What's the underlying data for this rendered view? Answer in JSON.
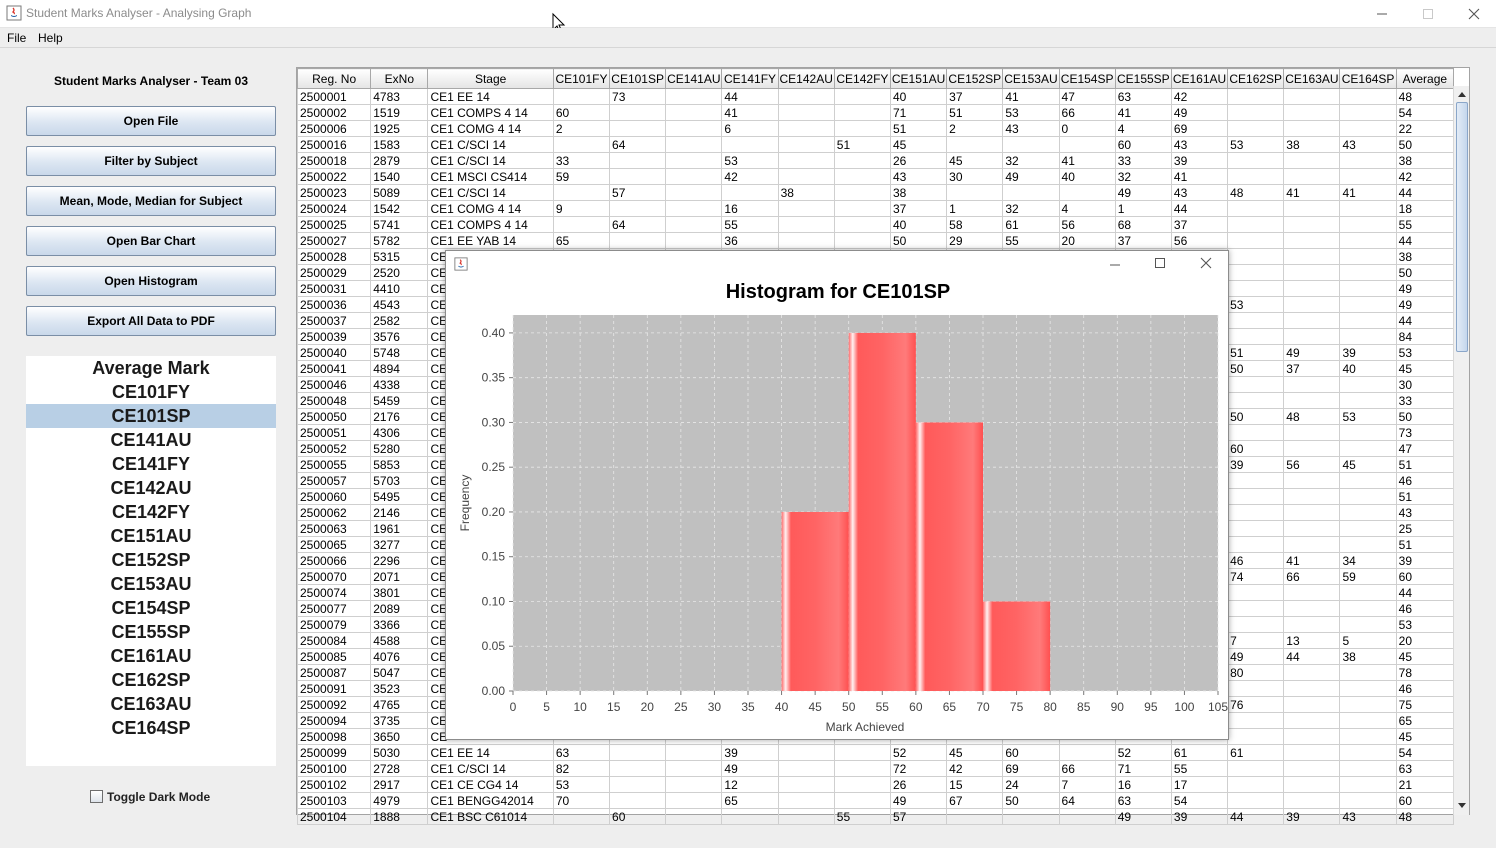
{
  "window": {
    "title": "Student Marks Analyser - Analysing Graph"
  },
  "menu": {
    "items": [
      "File",
      "Help"
    ]
  },
  "sidebar": {
    "team_title": "Student Marks Analyser - Team 03",
    "buttons": [
      "Open File",
      "Filter by Subject",
      "Mean, Mode, Median for Subject",
      "Open Bar Chart",
      "Open Histogram",
      "Export All Data to PDF"
    ],
    "list_items": [
      "Average Mark",
      "CE101FY",
      "CE101SP",
      "CE141AU",
      "CE141FY",
      "CE142AU",
      "CE142FY",
      "CE151AU",
      "CE152SP",
      "CE153AU",
      "CE154SP",
      "CE155SP",
      "CE161AU",
      "CE162SP",
      "CE163AU",
      "CE164SP"
    ],
    "selected_index": 2,
    "dark_mode_label": "Toggle Dark Mode",
    "dark_mode_checked": false
  },
  "table": {
    "columns": [
      "Reg. No",
      "ExNo",
      "Stage",
      "CE101FY",
      "CE101SP",
      "CE141AU",
      "CE141FY",
      "CE142AU",
      "CE142FY",
      "CE151AU",
      "CE152SP",
      "CE153AU",
      "CE154SP",
      "CE155SP",
      "CE161AU",
      "CE162SP",
      "CE163AU",
      "CE164SP",
      "Average"
    ],
    "rows": [
      [
        "2500001",
        "4783",
        "CE1 EE      14",
        "",
        "73",
        "",
        "44",
        "",
        "",
        "40",
        "37",
        "41",
        "47",
        "63",
        "42",
        "",
        "",
        "",
        "48"
      ],
      [
        "2500002",
        "1519",
        "CE1 COMPS 4 14",
        "60",
        "",
        "",
        "41",
        "",
        "",
        "71",
        "51",
        "53",
        "66",
        "41",
        "49",
        "",
        "",
        "",
        "54"
      ],
      [
        "2500006",
        "1925",
        "CE1  COMG 4 14",
        "2",
        "",
        "",
        "6",
        "",
        "",
        "51",
        "2",
        "43",
        "0",
        "4",
        "69",
        "",
        "",
        "",
        "22"
      ],
      [
        "2500016",
        "1583",
        "CE1 C/SCI   14",
        "",
        "64",
        "",
        "",
        "",
        "51",
        "45",
        "",
        "",
        "",
        "60",
        "43",
        "53",
        "38",
        "43",
        "50"
      ],
      [
        "2500018",
        "2879",
        "CE1 C/SCI   14",
        "33",
        "",
        "",
        "53",
        "",
        "",
        "26",
        "45",
        "32",
        "41",
        "33",
        "39",
        "",
        "",
        "",
        "38"
      ],
      [
        "2500022",
        "1540",
        "CE1 MSCI CS414",
        "59",
        "",
        "",
        "42",
        "",
        "",
        "43",
        "30",
        "49",
        "40",
        "32",
        "41",
        "",
        "",
        "",
        "42"
      ],
      [
        "2500023",
        "5089",
        "CE1 C/SCI   14",
        "",
        "57",
        "",
        "",
        "38",
        "",
        "38",
        "",
        "",
        "",
        "49",
        "43",
        "48",
        "41",
        "41",
        "44"
      ],
      [
        "2500024",
        "1542",
        "CE1  COMG 4 14",
        "9",
        "",
        "",
        "16",
        "",
        "",
        "37",
        "1",
        "32",
        "4",
        "1",
        "44",
        "",
        "",
        "",
        "18"
      ],
      [
        "2500025",
        "5741",
        "CE1 COMPS 4 14",
        "",
        "64",
        "",
        "55",
        "",
        "",
        "40",
        "58",
        "61",
        "56",
        "68",
        "37",
        "",
        "",
        "",
        "55"
      ],
      [
        "2500027",
        "5782",
        "CE1 EE YAB  14",
        "65",
        "",
        "",
        "36",
        "",
        "",
        "50",
        "29",
        "55",
        "20",
        "37",
        "56",
        "",
        "",
        "",
        "44"
      ],
      [
        "2500028",
        "5315",
        "CE",
        "",
        "",
        "",
        "",
        "",
        "",
        "",
        "",
        "",
        "",
        "",
        "",
        "",
        "",
        "",
        "38"
      ],
      [
        "2500029",
        "2520",
        "CE",
        "",
        "",
        "",
        "",
        "",
        "",
        "",
        "",
        "",
        "",
        "",
        "",
        "",
        "",
        "",
        "50"
      ],
      [
        "2500031",
        "4410",
        "CE",
        "",
        "",
        "",
        "",
        "",
        "",
        "",
        "",
        "",
        "",
        "",
        "",
        "",
        "",
        "",
        "49"
      ],
      [
        "2500036",
        "4543",
        "CE",
        "",
        "",
        "",
        "",
        "",
        "",
        "",
        "",
        "",
        "",
        "",
        "",
        "53",
        "",
        "",
        "49"
      ],
      [
        "2500037",
        "2582",
        "CE",
        "",
        "",
        "",
        "",
        "",
        "",
        "",
        "",
        "",
        "",
        "",
        "",
        "",
        "",
        "",
        "44"
      ],
      [
        "2500039",
        "3576",
        "CE",
        "",
        "",
        "",
        "",
        "",
        "",
        "",
        "",
        "",
        "",
        "",
        "",
        "",
        "",
        "",
        "84"
      ],
      [
        "2500040",
        "5748",
        "CE",
        "",
        "",
        "",
        "",
        "",
        "",
        "",
        "",
        "",
        "",
        "",
        "",
        "51",
        "49",
        "39",
        "53"
      ],
      [
        "2500041",
        "4894",
        "CE",
        "",
        "",
        "",
        "",
        "",
        "",
        "",
        "",
        "",
        "",
        "",
        "",
        "50",
        "37",
        "40",
        "45"
      ],
      [
        "2500046",
        "4338",
        "CE",
        "",
        "",
        "",
        "",
        "",
        "",
        "",
        "",
        "",
        "",
        "",
        "",
        "",
        "",
        "",
        "30"
      ],
      [
        "2500048",
        "5459",
        "CE",
        "",
        "",
        "",
        "",
        "",
        "",
        "",
        "",
        "",
        "",
        "",
        "",
        "",
        "",
        "",
        "33"
      ],
      [
        "2500050",
        "2176",
        "CE",
        "",
        "",
        "",
        "",
        "",
        "",
        "",
        "",
        "",
        "",
        "",
        "",
        "50",
        "48",
        "53",
        "50"
      ],
      [
        "2500051",
        "4306",
        "CE",
        "",
        "",
        "",
        "",
        "",
        "",
        "",
        "",
        "",
        "",
        "",
        "",
        "",
        "",
        "",
        "73"
      ],
      [
        "2500052",
        "5280",
        "CE",
        "",
        "",
        "",
        "",
        "",
        "",
        "",
        "",
        "",
        "",
        "",
        "",
        "60",
        "",
        "",
        "47"
      ],
      [
        "2500055",
        "5853",
        "CE",
        "",
        "",
        "",
        "",
        "",
        "",
        "",
        "",
        "",
        "",
        "",
        "",
        "39",
        "56",
        "45",
        "51"
      ],
      [
        "2500057",
        "5703",
        "CE",
        "",
        "",
        "",
        "",
        "",
        "",
        "",
        "",
        "",
        "",
        "",
        "",
        "",
        "",
        "",
        "46"
      ],
      [
        "2500060",
        "5495",
        "CE",
        "",
        "",
        "",
        "",
        "",
        "",
        "",
        "",
        "",
        "",
        "",
        "",
        "",
        "",
        "",
        "51"
      ],
      [
        "2500062",
        "2146",
        "CE",
        "",
        "",
        "",
        "",
        "",
        "",
        "",
        "",
        "",
        "",
        "",
        "",
        "",
        "",
        "",
        "43"
      ],
      [
        "2500063",
        "1961",
        "CE",
        "",
        "",
        "",
        "",
        "",
        "",
        "",
        "",
        "",
        "",
        "",
        "",
        "",
        "",
        "",
        "25"
      ],
      [
        "2500065",
        "3277",
        "CE",
        "",
        "",
        "",
        "",
        "",
        "",
        "",
        "",
        "",
        "",
        "",
        "",
        "",
        "",
        "",
        "51"
      ],
      [
        "2500066",
        "2296",
        "CE",
        "",
        "",
        "",
        "",
        "",
        "",
        "",
        "",
        "",
        "",
        "",
        "",
        "46",
        "41",
        "34",
        "39"
      ],
      [
        "2500070",
        "2071",
        "CE",
        "",
        "",
        "",
        "",
        "",
        "",
        "",
        "",
        "",
        "",
        "",
        "",
        "74",
        "66",
        "59",
        "60"
      ],
      [
        "2500074",
        "3801",
        "CE",
        "",
        "",
        "",
        "",
        "",
        "",
        "",
        "",
        "",
        "",
        "",
        "",
        "",
        "",
        "",
        "44"
      ],
      [
        "2500077",
        "2089",
        "CE",
        "",
        "",
        "",
        "",
        "",
        "",
        "",
        "",
        "",
        "",
        "",
        "",
        "",
        "",
        "",
        "46"
      ],
      [
        "2500079",
        "3366",
        "CE",
        "",
        "",
        "",
        "",
        "",
        "",
        "",
        "",
        "",
        "",
        "",
        "",
        "",
        "",
        "",
        "53"
      ],
      [
        "2500084",
        "4588",
        "CE",
        "",
        "",
        "",
        "",
        "",
        "",
        "",
        "",
        "",
        "",
        "",
        "",
        "7",
        "13",
        "5",
        "20"
      ],
      [
        "2500085",
        "4076",
        "CE",
        "",
        "",
        "",
        "",
        "",
        "",
        "",
        "",
        "",
        "",
        "",
        "",
        "49",
        "44",
        "38",
        "45"
      ],
      [
        "2500087",
        "5047",
        "CE",
        "",
        "",
        "",
        "",
        "",
        "",
        "",
        "",
        "",
        "",
        "",
        "",
        "80",
        "",
        "",
        "78"
      ],
      [
        "2500091",
        "3523",
        "CE",
        "",
        "",
        "",
        "",
        "",
        "",
        "",
        "",
        "",
        "",
        "",
        "",
        "",
        "",
        "",
        "46"
      ],
      [
        "2500092",
        "4765",
        "CE",
        "",
        "",
        "",
        "",
        "",
        "",
        "",
        "",
        "",
        "",
        "",
        "",
        "76",
        "",
        "",
        "75"
      ],
      [
        "2500094",
        "3735",
        "CE",
        "",
        "",
        "",
        "",
        "",
        "",
        "",
        "",
        "",
        "",
        "",
        "",
        "",
        "",
        "",
        "65"
      ],
      [
        "2500098",
        "3650",
        "CE",
        "",
        "",
        "",
        "",
        "",
        "",
        "",
        "",
        "",
        "",
        "",
        "",
        "",
        "",
        "",
        "45"
      ],
      [
        "2500099",
        "5030",
        "CE1 EE      14",
        "63",
        "",
        "",
        "39",
        "",
        "",
        "52",
        "45",
        "60",
        "",
        "52",
        "61",
        "61",
        "",
        "",
        "54"
      ],
      [
        "2500100",
        "2728",
        "CE1 C/SCI   14",
        "82",
        "",
        "",
        "49",
        "",
        "",
        "72",
        "42",
        "69",
        "66",
        "71",
        "55",
        "",
        "",
        "",
        "63"
      ],
      [
        "2500102",
        "2917",
        "CE1 CE CG4  14",
        "53",
        "",
        "",
        "12",
        "",
        "",
        "26",
        "15",
        "24",
        "7",
        "16",
        "17",
        "",
        "",
        "",
        "21"
      ],
      [
        "2500103",
        "4979",
        "CE1 BENGG42014",
        "70",
        "",
        "",
        "65",
        "",
        "",
        "49",
        "67",
        "50",
        "64",
        "63",
        "54",
        "",
        "",
        "",
        "60"
      ],
      [
        "2500104",
        "1888",
        "CE1 BSC C61014",
        "",
        "60",
        "",
        "",
        "",
        "55",
        "57",
        "",
        "",
        "",
        "49",
        "39",
        "44",
        "39",
        "43",
        "48"
      ]
    ]
  },
  "histogram": {
    "window_icon": "java-icon",
    "chart_data": {
      "type": "bar",
      "title": "Histogram for CE101SP",
      "xlabel": "Mark Achieved",
      "ylabel": "Frequency",
      "xlim": [
        0,
        105
      ],
      "ylim": [
        0,
        0.42
      ],
      "x_ticks": [
        0,
        5,
        10,
        15,
        20,
        25,
        30,
        35,
        40,
        45,
        50,
        55,
        60,
        65,
        70,
        75,
        80,
        85,
        90,
        95,
        100,
        105
      ],
      "y_ticks": [
        "0.00",
        "0.05",
        "0.10",
        "0.15",
        "0.20",
        "0.25",
        "0.30",
        "0.35",
        "0.40"
      ],
      "bins": [
        {
          "start": 40,
          "end": 50,
          "frequency": 0.2
        },
        {
          "start": 50,
          "end": 60,
          "frequency": 0.4
        },
        {
          "start": 60,
          "end": 70,
          "frequency": 0.3
        },
        {
          "start": 70,
          "end": 80,
          "frequency": 0.1
        }
      ],
      "grid": true,
      "bar_color": "#ff5a5a",
      "plot_background": "#c0c0c0"
    }
  }
}
